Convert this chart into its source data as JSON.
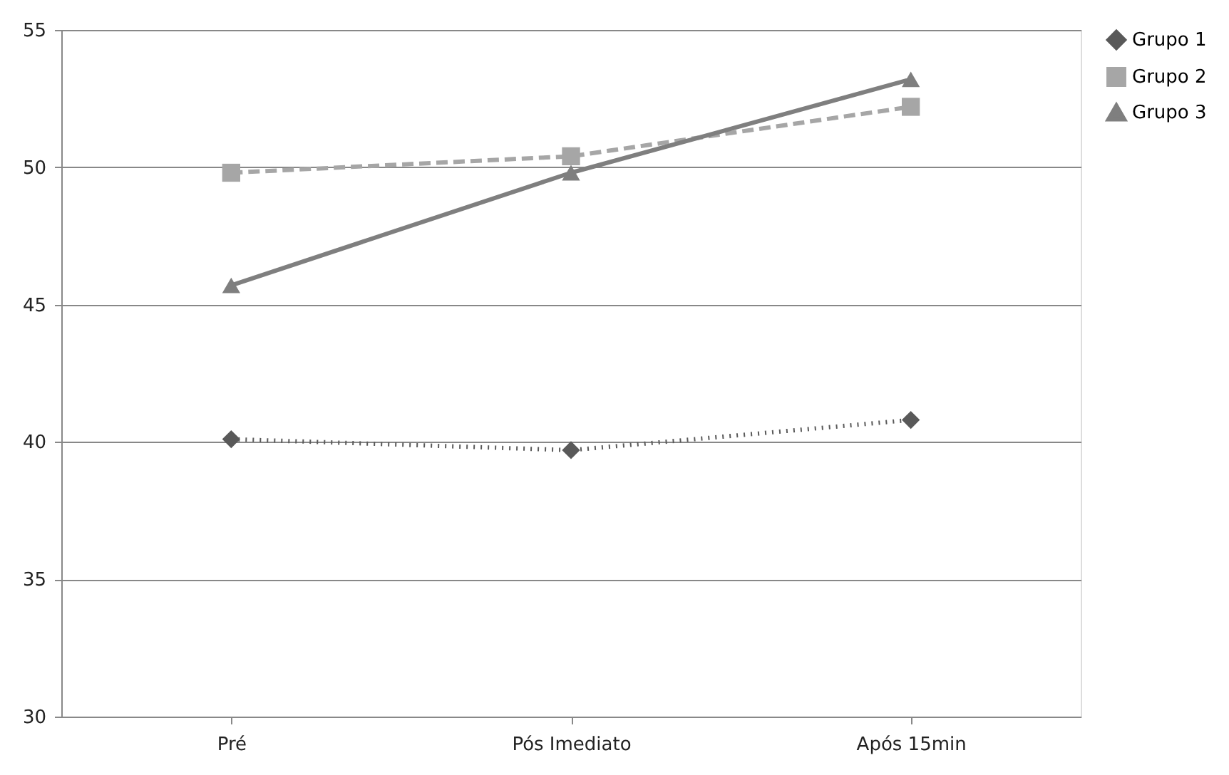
{
  "chart_data": {
    "type": "line",
    "categories": [
      "Pré",
      "Pós Imediato",
      "Após 15min"
    ],
    "series": [
      {
        "name": "Grupo 1",
        "color": "#595959",
        "values": [
          40.1,
          39.7,
          40.8
        ],
        "marker": "diamond",
        "line_style": "dotted"
      },
      {
        "name": "Grupo 2",
        "color": "#a6a6a6",
        "values": [
          49.8,
          50.4,
          52.2
        ],
        "marker": "square",
        "line_style": "dashed"
      },
      {
        "name": "Grupo 3",
        "color": "#7f7f7f",
        "values": [
          45.7,
          49.8,
          53.2
        ],
        "marker": "triangle",
        "line_style": "solid"
      }
    ],
    "ylim": [
      30,
      55
    ],
    "yticks": [
      30,
      35,
      40,
      45,
      50,
      55
    ],
    "grid": "y",
    "legend": "right"
  }
}
